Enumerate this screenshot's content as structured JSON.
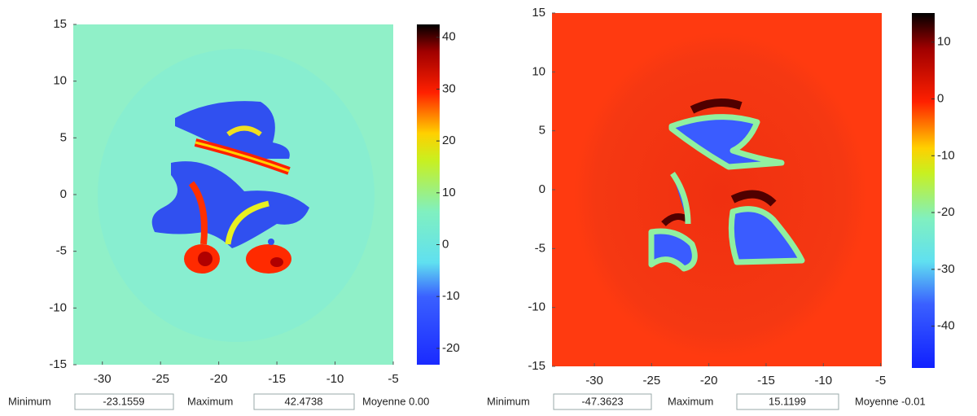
{
  "chart_data": [
    {
      "type": "heatmap",
      "xlim": [
        -32.5,
        -5
      ],
      "xticks": [
        -30,
        -25,
        -20,
        -15,
        -10,
        -5
      ],
      "ylim": [
        -15,
        15
      ],
      "yticks": [
        -15,
        -10,
        -5,
        0,
        5,
        10,
        15
      ],
      "colorbar": {
        "lim": [
          -23.1559,
          42.4738
        ],
        "ticks": [
          -20,
          -10,
          0,
          10,
          20,
          30,
          40
        ]
      },
      "stats": {
        "min_label": "Minimum",
        "min_value": "-23.1559",
        "max_label": "Maximum",
        "max_value": "42.4738",
        "mean": "Moyenne 0.00"
      }
    },
    {
      "type": "heatmap",
      "xlim": [
        -33.7,
        -4.9
      ],
      "xticks": [
        -30,
        -25,
        -20,
        -15,
        -10,
        -5
      ],
      "ylim": [
        -15,
        15
      ],
      "yticks": [
        -15,
        -10,
        -5,
        0,
        5,
        10,
        15
      ],
      "colorbar": {
        "lim": [
          -47.3623,
          15.1199
        ],
        "ticks": [
          -40,
          -30,
          -20,
          -10,
          0,
          10
        ]
      },
      "stats": {
        "min_label": "Minimum",
        "min_value": "-47.3623",
        "max_label": "Maximum",
        "max_value": "15.1199",
        "mean": "Moyenne -0.01"
      }
    }
  ]
}
